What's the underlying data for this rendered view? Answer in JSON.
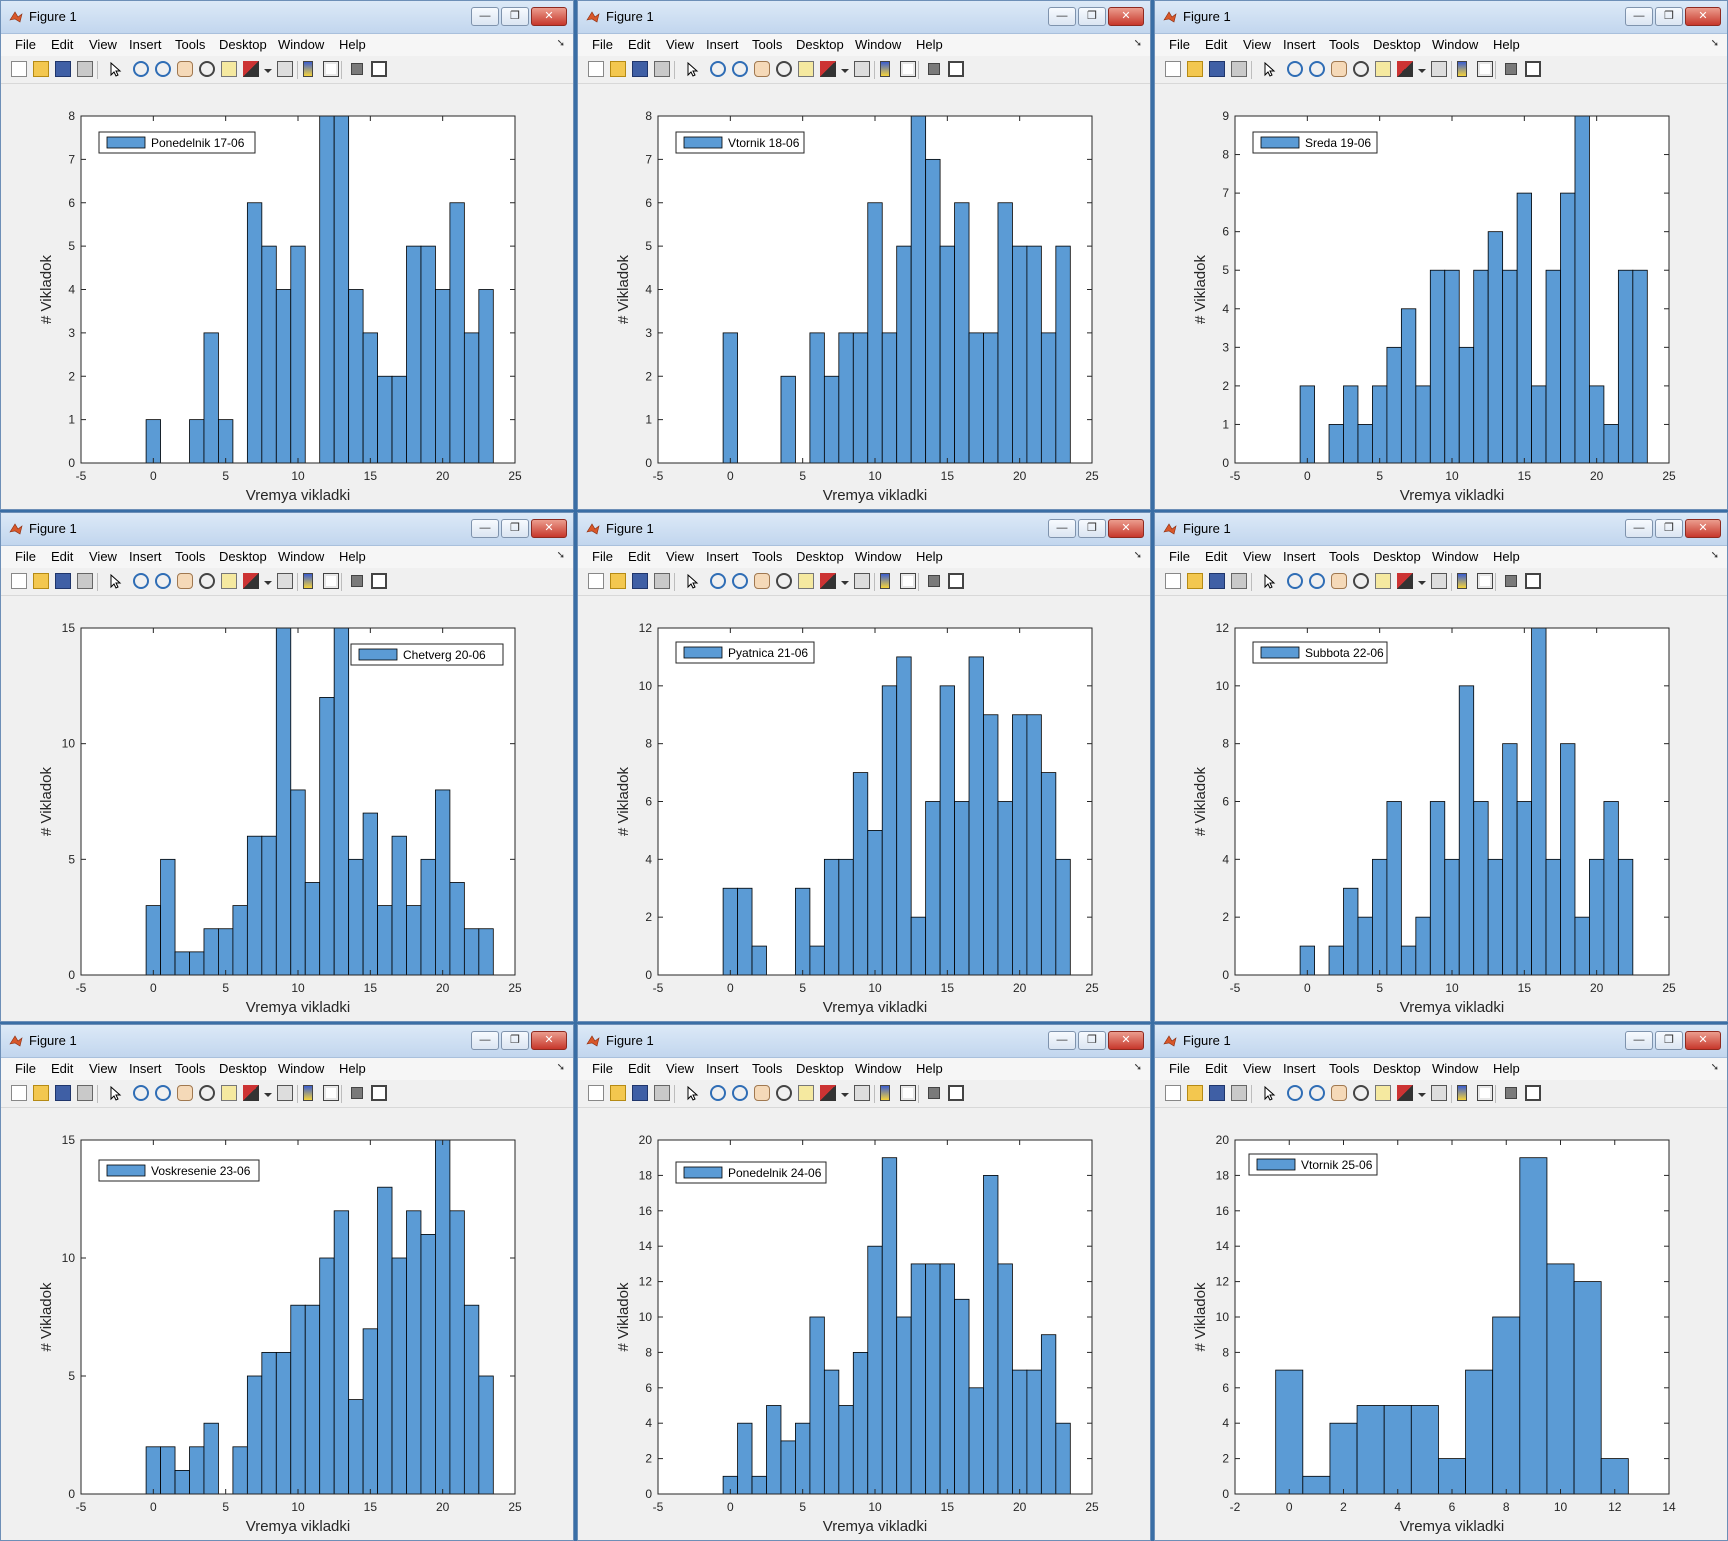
{
  "window_title": "Figure 1",
  "menu": [
    "File",
    "Edit",
    "View",
    "Insert",
    "Tools",
    "Desktop",
    "Window",
    "Help"
  ],
  "toolbar_icons": [
    "new-figure-icon",
    "open-file-icon",
    "save-icon",
    "print-icon",
    "pointer-icon",
    "zoom-in-icon",
    "zoom-out-icon",
    "pan-hand-icon",
    "rotate-3d-icon",
    "data-cursor-icon",
    "brush-icon",
    "dropdown-icon",
    "link-plot-icon",
    "insert-colorbar-icon",
    "insert-legend-icon",
    "hide-plot-tools-icon",
    "show-plot-tools-icon"
  ],
  "colors": {
    "bar_fill": "#5b9bd5",
    "bar_edge": "#000000",
    "plot_bg": "#ffffff"
  },
  "chart_data": [
    {
      "type": "bar",
      "title": "",
      "legend": "Ponedelnik 17-06",
      "xlabel": "Vremya vikladki",
      "ylabel": "# Vikladok",
      "xlim": [
        -5,
        25
      ],
      "ylim": [
        0,
        8
      ],
      "xticks": [
        -5,
        0,
        5,
        10,
        15,
        20,
        25
      ],
      "yticks": [
        0,
        1,
        2,
        3,
        4,
        5,
        6,
        7,
        8
      ],
      "x": [
        -1,
        0,
        1,
        2,
        3,
        4,
        5,
        6,
        7,
        8,
        9,
        10,
        11,
        12,
        13,
        14,
        15,
        16,
        17,
        18,
        19,
        20,
        21,
        22,
        23
      ],
      "values": [
        0,
        1,
        0,
        0,
        1,
        3,
        1,
        0,
        6,
        5,
        4,
        5,
        0,
        8,
        8,
        4,
        3,
        2,
        2,
        5,
        5,
        4,
        6,
        3,
        4
      ]
    },
    {
      "type": "bar",
      "title": "",
      "legend": "Vtornik 18-06",
      "xlabel": "Vremya vikladki",
      "ylabel": "# Vikladok",
      "xlim": [
        -5,
        25
      ],
      "ylim": [
        0,
        8
      ],
      "xticks": [
        -5,
        0,
        5,
        10,
        15,
        20,
        25
      ],
      "yticks": [
        0,
        1,
        2,
        3,
        4,
        5,
        6,
        7,
        8
      ],
      "x": [
        -1,
        0,
        1,
        2,
        3,
        4,
        5,
        6,
        7,
        8,
        9,
        10,
        11,
        12,
        13,
        14,
        15,
        16,
        17,
        18,
        19,
        20,
        21,
        22,
        23
      ],
      "values": [
        0,
        3,
        0,
        0,
        0,
        2,
        0,
        3,
        2,
        3,
        3,
        6,
        3,
        5,
        8,
        7,
        5,
        6,
        3,
        3,
        6,
        5,
        5,
        3,
        5
      ]
    },
    {
      "type": "bar",
      "title": "",
      "legend": "Sreda 19-06",
      "xlabel": "Vremya vikladki",
      "ylabel": "# Vikladok",
      "xlim": [
        -5,
        25
      ],
      "ylim": [
        0,
        9
      ],
      "xticks": [
        -5,
        0,
        5,
        10,
        15,
        20,
        25
      ],
      "yticks": [
        0,
        1,
        2,
        3,
        4,
        5,
        6,
        7,
        8,
        9
      ],
      "x": [
        -1,
        0,
        1,
        2,
        3,
        4,
        5,
        6,
        7,
        8,
        9,
        10,
        11,
        12,
        13,
        14,
        15,
        16,
        17,
        18,
        19,
        20,
        21,
        22,
        23
      ],
      "values": [
        0,
        2,
        0,
        1,
        2,
        1,
        2,
        3,
        4,
        2,
        5,
        5,
        3,
        5,
        6,
        5,
        7,
        2,
        5,
        7,
        9,
        2,
        1,
        5,
        5
      ]
    },
    {
      "type": "bar",
      "title": "",
      "legend": "Chetverg 20-06",
      "xlabel": "Vremya vikladki",
      "ylabel": "# Vikladok",
      "xlim": [
        -5,
        25
      ],
      "ylim": [
        0,
        15
      ],
      "xticks": [
        -5,
        0,
        5,
        10,
        15,
        20,
        25
      ],
      "yticks": [
        0,
        5,
        10,
        15
      ],
      "x": [
        -1,
        0,
        1,
        2,
        3,
        4,
        5,
        6,
        7,
        8,
        9,
        10,
        11,
        12,
        13,
        14,
        15,
        16,
        17,
        18,
        19,
        20,
        21,
        22,
        23
      ],
      "values": [
        0,
        3,
        5,
        1,
        1,
        2,
        2,
        3,
        6,
        6,
        15,
        8,
        4,
        12,
        15,
        5,
        7,
        3,
        6,
        3,
        5,
        8,
        4,
        2,
        2
      ]
    },
    {
      "type": "bar",
      "title": "",
      "legend": "Pyatnica 21-06",
      "xlabel": "Vremya vikladki",
      "ylabel": "# Vikladok",
      "xlim": [
        -5,
        25
      ],
      "ylim": [
        0,
        12
      ],
      "xticks": [
        -5,
        0,
        5,
        10,
        15,
        20,
        25
      ],
      "yticks": [
        0,
        2,
        4,
        6,
        8,
        10,
        12
      ],
      "x": [
        -1,
        0,
        1,
        2,
        3,
        4,
        5,
        6,
        7,
        8,
        9,
        10,
        11,
        12,
        13,
        14,
        15,
        16,
        17,
        18,
        19,
        20,
        21,
        22,
        23
      ],
      "values": [
        0,
        3,
        3,
        1,
        0,
        0,
        3,
        1,
        4,
        4,
        7,
        5,
        10,
        11,
        2,
        6,
        10,
        6,
        11,
        9,
        6,
        9,
        9,
        7,
        4
      ]
    },
    {
      "type": "bar",
      "title": "",
      "legend": "Subbota 22-06",
      "xlabel": "Vremya vikladki",
      "ylabel": "# Vikladok",
      "xlim": [
        -5,
        25
      ],
      "ylim": [
        0,
        12
      ],
      "xticks": [
        -5,
        0,
        5,
        10,
        15,
        20,
        25
      ],
      "yticks": [
        0,
        2,
        4,
        6,
        8,
        10,
        12
      ],
      "x": [
        -1,
        0,
        1,
        2,
        3,
        4,
        5,
        6,
        7,
        8,
        9,
        10,
        11,
        12,
        13,
        14,
        15,
        16,
        17,
        18,
        19,
        20,
        21,
        22,
        23
      ],
      "values": [
        0,
        1,
        0,
        1,
        3,
        2,
        4,
        6,
        1,
        2,
        6,
        4,
        10,
        6,
        4,
        8,
        6,
        12,
        4,
        8,
        2,
        4,
        6,
        4,
        0
      ]
    },
    {
      "type": "bar",
      "title": "",
      "legend": "Voskresenie 23-06",
      "xlabel": "Vremya vikladki",
      "ylabel": "# Vikladok",
      "xlim": [
        -5,
        25
      ],
      "ylim": [
        0,
        15
      ],
      "xticks": [
        -5,
        0,
        5,
        10,
        15,
        20,
        25
      ],
      "yticks": [
        0,
        5,
        10,
        15
      ],
      "x": [
        -1,
        0,
        1,
        2,
        3,
        4,
        5,
        6,
        7,
        8,
        9,
        10,
        11,
        12,
        13,
        14,
        15,
        16,
        17,
        18,
        19,
        20,
        21,
        22,
        23
      ],
      "values": [
        0,
        2,
        2,
        1,
        2,
        3,
        0,
        2,
        5,
        6,
        6,
        8,
        8,
        10,
        12,
        4,
        7,
        13,
        10,
        12,
        11,
        15,
        12,
        8,
        5
      ]
    },
    {
      "type": "bar",
      "title": "",
      "legend": "Ponedelnik 24-06",
      "xlabel": "Vremya vikladki",
      "ylabel": "# Vikladok",
      "xlim": [
        -5,
        25
      ],
      "ylim": [
        0,
        20
      ],
      "xticks": [
        -5,
        0,
        5,
        10,
        15,
        20,
        25
      ],
      "yticks": [
        0,
        2,
        4,
        6,
        8,
        10,
        12,
        14,
        16,
        18,
        20
      ],
      "x": [
        -1,
        0,
        1,
        2,
        3,
        4,
        5,
        6,
        7,
        8,
        9,
        10,
        11,
        12,
        13,
        14,
        15,
        16,
        17,
        18,
        19,
        20,
        21,
        22,
        23
      ],
      "values": [
        0,
        1,
        4,
        1,
        5,
        3,
        4,
        10,
        7,
        5,
        8,
        14,
        19,
        10,
        13,
        13,
        13,
        11,
        6,
        18,
        13,
        7,
        7,
        9,
        4
      ]
    },
    {
      "type": "bar",
      "title": "",
      "legend": "Vtornik 25-06",
      "xlabel": "Vremya vikladki",
      "ylabel": "# Vikladok",
      "xlim": [
        -2,
        14
      ],
      "ylim": [
        0,
        20
      ],
      "xticks": [
        -2,
        0,
        2,
        4,
        6,
        8,
        10,
        12,
        14
      ],
      "yticks": [
        0,
        2,
        4,
        6,
        8,
        10,
        12,
        14,
        16,
        18,
        20
      ],
      "x": [
        0,
        1,
        2,
        3,
        4,
        5,
        6,
        7,
        8,
        9,
        10,
        11,
        12
      ],
      "values": [
        7,
        1,
        4,
        5,
        5,
        5,
        2,
        7,
        10,
        19,
        13,
        12,
        2
      ]
    }
  ]
}
